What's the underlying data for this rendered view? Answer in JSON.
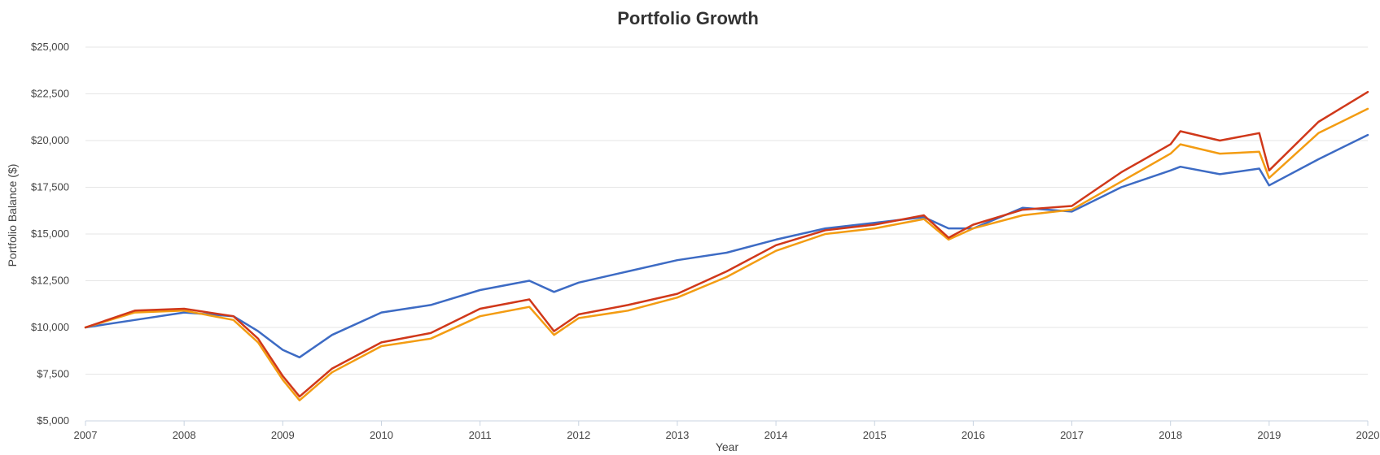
{
  "chart_data": {
    "type": "line",
    "title": "Portfolio Growth",
    "xlabel": "Year",
    "ylabel": "Portfolio Balance ($)",
    "xlim": [
      2007,
      2020
    ],
    "ylim": [
      5000,
      25000
    ],
    "x_ticks": [
      "2007",
      "2008",
      "2009",
      "2010",
      "2011",
      "2012",
      "2013",
      "2014",
      "2015",
      "2016",
      "2017",
      "2018",
      "2019",
      "2020"
    ],
    "y_ticks": [
      "$5,000",
      "$7,500",
      "$10,000",
      "$12,500",
      "$15,000",
      "$17,500",
      "$20,000",
      "$22,500",
      "$25,000"
    ],
    "grid": true,
    "legend": "none",
    "x_points": [
      2007.0,
      2007.5,
      2008.0,
      2008.5,
      2008.75,
      2009.0,
      2009.17,
      2009.5,
      2010.0,
      2010.5,
      2011.0,
      2011.5,
      2011.75,
      2012.0,
      2012.5,
      2013.0,
      2013.5,
      2014.0,
      2014.5,
      2015.0,
      2015.5,
      2015.75,
      2016.0,
      2016.5,
      2017.0,
      2017.5,
      2018.0,
      2018.1,
      2018.5,
      2018.9,
      2019.0,
      2019.5,
      2020.0
    ],
    "series": [
      {
        "color": "#3d6bc4",
        "values": [
          10000,
          10400,
          10800,
          10600,
          9800,
          8800,
          8400,
          9600,
          10800,
          11200,
          12000,
          12500,
          11900,
          12400,
          13000,
          13600,
          14000,
          14700,
          15300,
          15600,
          15900,
          15300,
          15300,
          16400,
          16200,
          17500,
          18400,
          18600,
          18200,
          18500,
          17600,
          19000,
          20300
        ]
      },
      {
        "color": "#f39c12",
        "values": [
          10000,
          10800,
          10900,
          10400,
          9200,
          7200,
          6100,
          7600,
          9000,
          9400,
          10600,
          11100,
          9600,
          10500,
          10900,
          11600,
          12700,
          14100,
          15000,
          15300,
          15800,
          14700,
          15300,
          16000,
          16300,
          17800,
          19300,
          19800,
          19300,
          19400,
          18000,
          20400,
          21700
        ]
      },
      {
        "color": "#d0381a",
        "values": [
          10000,
          10900,
          11000,
          10600,
          9400,
          7400,
          6300,
          7800,
          9200,
          9700,
          11000,
          11500,
          9800,
          10700,
          11200,
          11800,
          13000,
          14400,
          15200,
          15500,
          16000,
          14800,
          15500,
          16300,
          16500,
          18300,
          19800,
          20500,
          20000,
          20400,
          18400,
          21000,
          22600
        ]
      }
    ]
  }
}
